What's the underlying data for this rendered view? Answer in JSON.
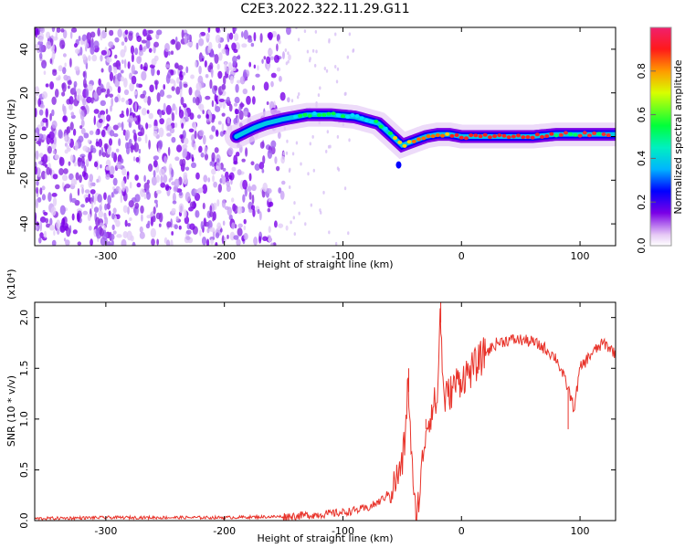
{
  "title": "C2E3.2022.322.11.29.G11",
  "chart_data": [
    {
      "type": "heatmap",
      "xlabel": "Height of straight line (km)",
      "ylabel": "Frequency (Hz)",
      "xlim": [
        -360,
        130
      ],
      "ylim": [
        -50,
        50
      ],
      "x_ticks": [
        -300,
        -200,
        -100,
        0,
        100
      ],
      "x_tick_labels": [
        "-300",
        "-200",
        "-100",
        "0",
        "100"
      ],
      "y_ticks": [
        -40,
        -20,
        0,
        20,
        40
      ],
      "y_tick_labels": [
        "-40",
        "-20",
        "0",
        "20",
        "40"
      ],
      "colorbar": {
        "label": "Normalized spectral amplitude",
        "range": [
          0,
          1
        ],
        "ticks": [
          0.0,
          0.2,
          0.4,
          0.6,
          0.8
        ],
        "tick_labels": [
          "0.0",
          "0.2",
          "0.4",
          "0.6",
          "0.8"
        ]
      },
      "ridge": {
        "x": [
          -190,
          -175,
          -165,
          -150,
          -130,
          -110,
          -90,
          -70,
          -60,
          -50,
          -40,
          -30,
          -20,
          -10,
          0,
          20,
          40,
          60,
          80,
          100,
          120,
          130
        ],
        "y": [
          0,
          4,
          6,
          8,
          10,
          10,
          9,
          6,
          1,
          -4,
          -2,
          0,
          1,
          1,
          0,
          0,
          0,
          0,
          1,
          1,
          1,
          1
        ]
      }
    },
    {
      "type": "line",
      "xlabel": "Height of straight line (km)",
      "ylabel": "SNR (10 * v/v)",
      "y_scale_note": "(x10⁴)",
      "xlim": [
        -360,
        130
      ],
      "ylim": [
        0,
        2.15
      ],
      "x_ticks": [
        -300,
        -200,
        -100,
        0,
        100
      ],
      "x_tick_labels": [
        "-300",
        "-200",
        "-100",
        "0",
        "100"
      ],
      "y_ticks": [
        0.0,
        0.5,
        1.0,
        1.5,
        2.0
      ],
      "y_tick_labels": [
        "0.0",
        "0.5",
        "1.0",
        "1.5",
        "2.0"
      ],
      "series": [
        {
          "color": "#e8332a",
          "x": [
            -360,
            -300,
            -200,
            -150,
            -120,
            -100,
            -80,
            -70,
            -60,
            -55,
            -50,
            -47,
            -45,
            -42,
            -40,
            -38,
            -35,
            -32,
            -30,
            -25,
            -20,
            -18,
            -15,
            -10,
            -5,
            0,
            10,
            20,
            30,
            40,
            50,
            60,
            70,
            80,
            90,
            95,
            100,
            110,
            120,
            130
          ],
          "y": [
            0.02,
            0.03,
            0.03,
            0.04,
            0.06,
            0.08,
            0.12,
            0.18,
            0.28,
            0.4,
            0.55,
            0.9,
            1.4,
            0.6,
            0.15,
            0.05,
            0.3,
            0.7,
            0.9,
            1.1,
            1.2,
            2.1,
            1.2,
            1.25,
            1.35,
            1.4,
            1.5,
            1.65,
            1.75,
            1.78,
            1.78,
            1.76,
            1.7,
            1.6,
            1.3,
            1.1,
            1.5,
            1.65,
            1.75,
            1.65
          ]
        }
      ]
    }
  ]
}
